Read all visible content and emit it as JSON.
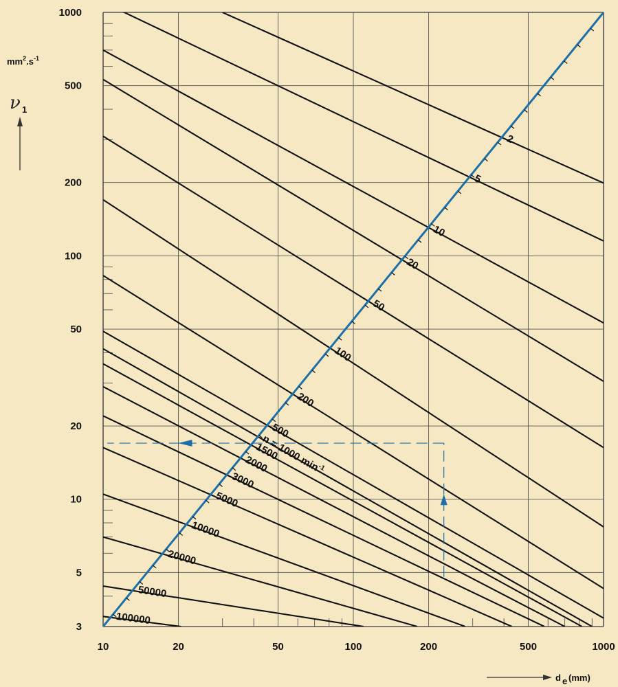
{
  "chart_data": {
    "type": "line",
    "scale": {
      "x": "log",
      "y": "log"
    },
    "xlim": [
      10,
      1000
    ],
    "ylim": [
      3,
      1000
    ],
    "grid": true,
    "x_ticks": [
      10,
      20,
      50,
      100,
      200,
      500,
      1000
    ],
    "x_tick_labels": [
      "10",
      "20",
      "50",
      "100",
      "200",
      "500",
      "1000"
    ],
    "y_ticks": [
      3,
      5,
      10,
      20,
      50,
      100,
      200,
      500,
      1000
    ],
    "y_tick_labels": [
      "3",
      "5",
      "10",
      "20",
      "50",
      "100",
      "200",
      "500",
      "1000"
    ],
    "xlabel": {
      "symbol": "d",
      "subscript": "e",
      "unit": "(mm)"
    },
    "ylabel": {
      "symbol": "ν",
      "subscript": "1",
      "unit_html": "mm",
      "unit_sup": "2",
      "unit_mid": ".s",
      "unit_sup2": "-1"
    },
    "colors": {
      "background": "#f6e8c3",
      "grid": "#555555",
      "speed_lines": "#111111",
      "reference_line": "#1d6fa8"
    },
    "reference_line": {
      "name": "",
      "x": [
        10,
        1000
      ],
      "y": [
        3,
        1000
      ]
    },
    "speed_lines": [
      {
        "n": 2,
        "label": "2",
        "points": [
          [
            30,
            1000
          ],
          [
            1000,
            199
          ]
        ]
      },
      {
        "n": 5,
        "label": "5",
        "points": [
          [
            10,
            1100
          ],
          [
            1000,
            115
          ]
        ]
      },
      {
        "n": 10,
        "label": "10",
        "points": [
          [
            10,
            700
          ],
          [
            1000,
            53
          ]
        ]
      },
      {
        "n": 20,
        "label": "20",
        "points": [
          [
            10,
            530
          ],
          [
            1000,
            30.5
          ]
        ]
      },
      {
        "n": 50,
        "label": "50",
        "points": [
          [
            10,
            310
          ],
          [
            1000,
            16.3
          ]
        ]
      },
      {
        "n": 100,
        "label": "100",
        "points": [
          [
            10,
            170
          ],
          [
            1000,
            7.7
          ]
        ]
      },
      {
        "n": 200,
        "label": "200",
        "points": [
          [
            10,
            83
          ],
          [
            1000,
            4.3
          ]
        ]
      },
      {
        "n": 500,
        "label": "500",
        "points": [
          [
            10,
            49
          ],
          [
            1000,
            3.25
          ]
        ]
      },
      {
        "n": 1000,
        "label": "n = 1000 min",
        "label_sup": "-1",
        "points": [
          [
            10,
            41.5
          ],
          [
            900,
            3
          ]
        ]
      },
      {
        "n": 1500,
        "label": "1500",
        "points": [
          [
            10,
            36
          ],
          [
            820,
            3
          ]
        ]
      },
      {
        "n": 2000,
        "label": "2000",
        "points": [
          [
            10,
            29
          ],
          [
            700,
            3
          ]
        ]
      },
      {
        "n": 3000,
        "label": "3000",
        "points": [
          [
            10,
            22
          ],
          [
            580,
            3
          ]
        ]
      },
      {
        "n": 5000,
        "label": "5000",
        "points": [
          [
            10,
            16.3
          ],
          [
            430,
            3
          ]
        ]
      },
      {
        "n": 10000,
        "label": "10000",
        "points": [
          [
            10,
            10.5
          ],
          [
            280,
            3
          ]
        ]
      },
      {
        "n": 20000,
        "label": "20000",
        "points": [
          [
            10,
            7
          ],
          [
            180,
            3
          ]
        ]
      },
      {
        "n": 50000,
        "label": "50000",
        "points": [
          [
            10,
            4.4
          ],
          [
            110,
            3
          ]
        ]
      },
      {
        "n": 100000,
        "label": "100000",
        "points": [
          [
            10,
            3.3
          ],
          [
            20.5,
            3
          ]
        ]
      }
    ],
    "example": {
      "x": 230,
      "y": 17
    }
  }
}
